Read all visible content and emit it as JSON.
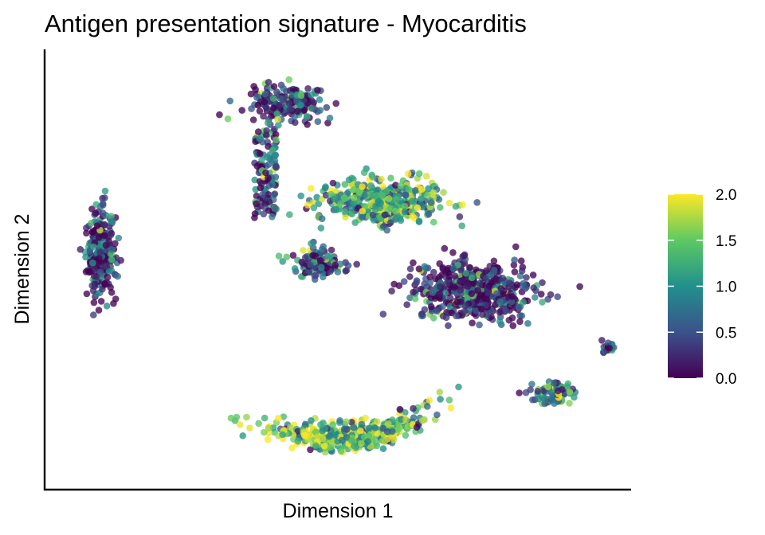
{
  "chart_data": {
    "type": "scatter",
    "title": "Antigen presentation signature - Myocarditis",
    "xlabel": "Dimension 1",
    "ylabel": "Dimension 2",
    "x_ticks_shown": false,
    "y_ticks_shown": false,
    "grid": false,
    "colorscale": "viridis",
    "color_range": [
      0,
      2
    ],
    "colorbar": {
      "position": "right",
      "ticks": [
        "0.0",
        "0.5",
        "1.0",
        "1.5",
        "2.0"
      ],
      "tick_values": [
        0,
        0.5,
        1.0,
        1.5,
        2.0
      ],
      "colors": [
        "#440154",
        "#3b528b",
        "#21908d",
        "#5dc963",
        "#fde725"
      ]
    },
    "xlim": [
      0,
      100
    ],
    "ylim": [
      0,
      100
    ],
    "clusters": [
      {
        "name_hint": "far-left",
        "center": [
          8,
          53
        ],
        "spread": [
          2.3,
          9.5
        ],
        "n": 260,
        "mean_value": 0.15
      },
      {
        "name_hint": "top-blob",
        "center": [
          41,
          90
        ],
        "spread": [
          6.5,
          4.2
        ],
        "n": 300,
        "mean_value": 0.35
      },
      {
        "name_hint": "upper-right-arms",
        "center": [
          57,
          66
        ],
        "spread": [
          9.5,
          5.0
        ],
        "n": 420,
        "mean_value": 1.25
      },
      {
        "name_hint": "small-middle",
        "center": [
          46,
          51
        ],
        "spread": [
          4.5,
          3.5
        ],
        "n": 110,
        "mean_value": 0.45
      },
      {
        "name_hint": "big-right",
        "center": [
          74,
          44
        ],
        "spread": [
          9.5,
          6.0
        ],
        "n": 520,
        "mean_value": 0.2
      },
      {
        "name_hint": "bottom-arc",
        "center": [
          52,
          8
        ],
        "spread": [
          13,
          4.5
        ],
        "n": 420,
        "mean_value": 1.45
      },
      {
        "name_hint": "small-lower-right",
        "center": [
          88,
          19
        ],
        "spread": [
          3.8,
          2.4
        ],
        "n": 90,
        "mean_value": 0.9
      },
      {
        "name_hint": "tiny-far-right",
        "center": [
          97.5,
          30
        ],
        "spread": [
          1.2,
          1.2
        ],
        "n": 22,
        "mean_value": 0.3
      }
    ]
  }
}
